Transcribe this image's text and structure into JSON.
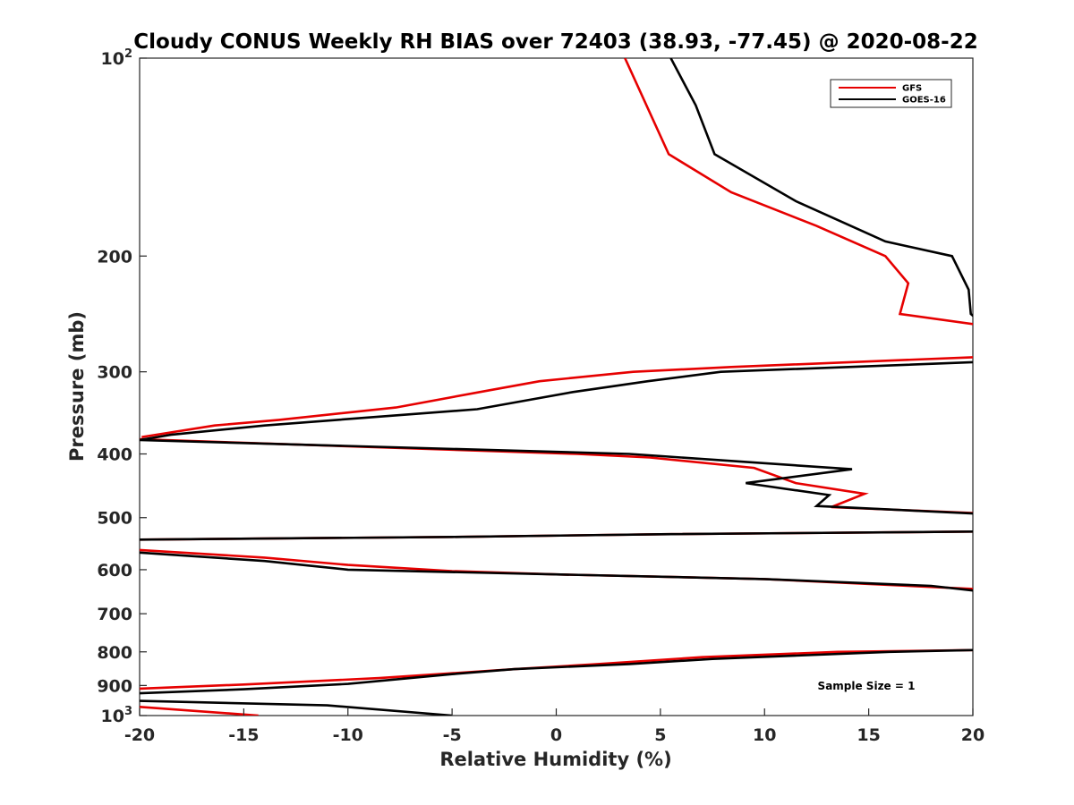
{
  "chart_data": {
    "type": "line",
    "title": "Cloudy CONUS Weekly RH BIAS over 72403 (38.93, -77.45) @ 2020-08-22",
    "xlabel": "Relative Humidity (%)",
    "ylabel": "Pressure (mb)",
    "xlim": [
      -20,
      20
    ],
    "ylim": [
      100,
      1000
    ],
    "y_scale": "log",
    "y_reversed": true,
    "x_ticks": [
      "-20",
      "-15",
      "-10",
      "-5",
      "0",
      "5",
      "10",
      "15",
      "20"
    ],
    "y_ticks": [
      {
        "value": 100,
        "label": "10",
        "sup": "2"
      },
      {
        "value": 200,
        "label": "200",
        "sup": ""
      },
      {
        "value": 300,
        "label": "300",
        "sup": ""
      },
      {
        "value": 400,
        "label": "400",
        "sup": ""
      },
      {
        "value": 500,
        "label": "500",
        "sup": ""
      },
      {
        "value": 600,
        "label": "600",
        "sup": ""
      },
      {
        "value": 700,
        "label": "700",
        "sup": ""
      },
      {
        "value": 800,
        "label": "800",
        "sup": ""
      },
      {
        "value": 900,
        "label": "900",
        "sup": ""
      },
      {
        "value": 1000,
        "label": "10",
        "sup": "3"
      }
    ],
    "legend": {
      "placement": "top-right"
    },
    "annotation": "Sample Size = 1",
    "grid": false,
    "series": [
      {
        "name": "GFS",
        "color": "#e60000",
        "points": [
          [
            3.3,
            100
          ],
          [
            5.4,
            140
          ],
          [
            8.4,
            160
          ],
          [
            12.5,
            180
          ],
          [
            15.8,
            200
          ],
          [
            16.9,
            220
          ],
          [
            16.5,
            245
          ],
          [
            20.1,
            254
          ],
          null,
          [
            20.1,
            285
          ],
          [
            8.4,
            295
          ],
          [
            3.7,
            300
          ],
          [
            -0.8,
            310
          ],
          [
            -3.2,
            320
          ],
          [
            -7.7,
            340
          ],
          [
            -13.3,
            355
          ],
          [
            -16.4,
            362
          ],
          [
            -19.9,
            377
          ],
          null,
          [
            -20,
            380
          ],
          [
            1,
            400
          ],
          [
            4.5,
            405
          ],
          [
            9.5,
            420
          ],
          [
            11.5,
            443
          ],
          [
            14.8,
            460
          ],
          [
            13.2,
            482
          ],
          [
            20.1,
            492
          ],
          null,
          [
            20.1,
            525
          ],
          [
            5,
            530
          ],
          [
            -5,
            535
          ],
          [
            -20,
            540
          ],
          null,
          [
            -20,
            560
          ],
          [
            -14,
            575
          ],
          [
            -10,
            590
          ],
          [
            -5,
            603
          ],
          [
            0,
            610
          ],
          [
            10,
            620
          ],
          [
            20.1,
            642
          ],
          null,
          [
            20.1,
            795
          ],
          [
            13.5,
            800
          ],
          [
            7,
            815
          ],
          [
            2,
            835
          ],
          [
            -2,
            850
          ],
          [
            -8.5,
            877
          ],
          [
            -15,
            897
          ],
          [
            -20,
            910
          ],
          null,
          [
            -20,
            970
          ],
          [
            -14.3,
            1000
          ]
        ]
      },
      {
        "name": "GOES-16",
        "color": "#000000",
        "points": [
          [
            5.5,
            100
          ],
          [
            6.7,
            118
          ],
          [
            7.6,
            140
          ],
          [
            11.5,
            165
          ],
          [
            15.8,
            190
          ],
          [
            19,
            200
          ],
          [
            19.8,
            225
          ],
          [
            19.9,
            245
          ],
          [
            20.1,
            248
          ],
          null,
          [
            20.1,
            290
          ],
          [
            7.9,
            300
          ],
          [
            4.4,
            310
          ],
          [
            0.8,
            322
          ],
          [
            -3.8,
            342
          ],
          [
            -8,
            350
          ],
          [
            -14,
            362
          ],
          [
            -18.5,
            374
          ],
          [
            -20,
            381
          ],
          null,
          [
            -20,
            381
          ],
          [
            3.5,
            400
          ],
          [
            14.2,
            422
          ],
          [
            9.1,
            443
          ],
          [
            13.1,
            462
          ],
          [
            12.5,
            480
          ],
          [
            20.1,
            493
          ],
          null,
          [
            20.1,
            525
          ],
          [
            5,
            530
          ],
          [
            -5,
            535
          ],
          [
            -20,
            540
          ],
          null,
          [
            -20,
            565
          ],
          [
            -14,
            582
          ],
          [
            -10,
            600
          ],
          [
            0,
            610
          ],
          [
            10,
            620
          ],
          [
            18,
            635
          ],
          [
            20.1,
            646
          ],
          null,
          [
            20.1,
            795
          ],
          [
            16,
            800
          ],
          [
            7.5,
            820
          ],
          [
            3.5,
            835
          ],
          [
            -2,
            850
          ],
          [
            -5,
            865
          ],
          [
            -10,
            895
          ],
          [
            -15,
            912
          ],
          [
            -20,
            925
          ],
          null,
          [
            -20,
            950
          ],
          [
            -11,
            965
          ],
          [
            -5,
            1000
          ]
        ]
      }
    ]
  }
}
